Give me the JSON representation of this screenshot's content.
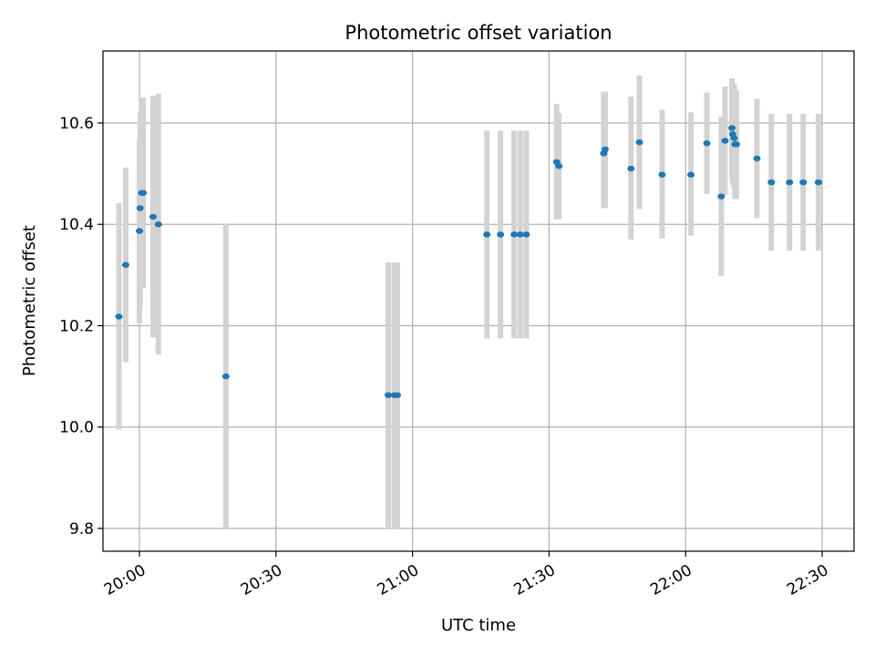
{
  "chart_data": {
    "type": "scatter",
    "title": "Photometric offset variation",
    "xlabel": "UTC time",
    "ylabel": "Photometric offset",
    "grid": true,
    "xaxis_type": "time",
    "xlim": [
      "19:52",
      "22:37"
    ],
    "ylim": [
      9.755,
      10.742
    ],
    "x_ticks": [
      {
        "value": "20:00",
        "label": "20:00"
      },
      {
        "value": "20:30",
        "label": "20:30"
      },
      {
        "value": "21:00",
        "label": "21:00"
      },
      {
        "value": "21:30",
        "label": "21:30"
      },
      {
        "value": "22:00",
        "label": "22:00"
      },
      {
        "value": "22:30",
        "label": "22:30"
      }
    ],
    "y_ticks": [
      {
        "value": 9.8,
        "label": "9.8"
      },
      {
        "value": 10.0,
        "label": "10.0"
      },
      {
        "value": 10.2,
        "label": "10.2"
      },
      {
        "value": 10.4,
        "label": "10.4"
      },
      {
        "value": 10.6,
        "label": "10.6"
      }
    ],
    "point_color": "#1f77b4",
    "errorbar_color": "#d3d3d3",
    "grid_color": "#b0b0b0",
    "points": [
      {
        "x": "19:55:30",
        "y": 10.218,
        "ylow": 9.995,
        "yhigh": 10.442
      },
      {
        "x": "19:57:00",
        "y": 10.32,
        "ylow": 10.128,
        "yhigh": 10.512
      },
      {
        "x": "20:00:00",
        "y": 10.387,
        "ylow": 10.205,
        "yhigh": 10.568
      },
      {
        "x": "20:00:10",
        "y": 10.432,
        "ylow": 10.24,
        "yhigh": 10.62
      },
      {
        "x": "20:00:30",
        "y": 10.462,
        "ylow": 10.274,
        "yhigh": 10.65
      },
      {
        "x": "20:00:50",
        "y": 10.462,
        "ylow": 10.274,
        "yhigh": 10.65
      },
      {
        "x": "20:03:00",
        "y": 10.415,
        "ylow": 10.177,
        "yhigh": 10.654
      },
      {
        "x": "20:04:10",
        "y": 10.4,
        "ylow": 10.143,
        "yhigh": 10.658
      },
      {
        "x": "20:19:00",
        "y": 10.1,
        "ylow": 9.8,
        "yhigh": 10.4
      },
      {
        "x": "20:54:40",
        "y": 10.063,
        "ylow": 9.8,
        "yhigh": 10.325
      },
      {
        "x": "20:56:00",
        "y": 10.063,
        "ylow": 9.8,
        "yhigh": 10.325
      },
      {
        "x": "20:56:40",
        "y": 10.063,
        "ylow": 9.8,
        "yhigh": 10.325
      },
      {
        "x": "21:16:20",
        "y": 10.38,
        "ylow": 10.175,
        "yhigh": 10.585
      },
      {
        "x": "21:19:20",
        "y": 10.38,
        "ylow": 10.175,
        "yhigh": 10.585
      },
      {
        "x": "21:22:20",
        "y": 10.38,
        "ylow": 10.175,
        "yhigh": 10.585
      },
      {
        "x": "21:23:40",
        "y": 10.38,
        "ylow": 10.175,
        "yhigh": 10.585
      },
      {
        "x": "21:25:00",
        "y": 10.38,
        "ylow": 10.175,
        "yhigh": 10.585
      },
      {
        "x": "21:31:40",
        "y": 10.523,
        "ylow": 10.41,
        "yhigh": 10.638
      },
      {
        "x": "21:32:10",
        "y": 10.515,
        "ylow": 10.41,
        "yhigh": 10.62
      },
      {
        "x": "21:42:00",
        "y": 10.54,
        "ylow": 10.432,
        "yhigh": 10.662
      },
      {
        "x": "21:42:20",
        "y": 10.548,
        "ylow": 10.432,
        "yhigh": 10.662
      },
      {
        "x": "21:48:00",
        "y": 10.51,
        "ylow": 10.37,
        "yhigh": 10.652
      },
      {
        "x": "21:49:50",
        "y": 10.562,
        "ylow": 10.43,
        "yhigh": 10.694
      },
      {
        "x": "21:54:50",
        "y": 10.498,
        "ylow": 10.372,
        "yhigh": 10.626
      },
      {
        "x": "22:01:10",
        "y": 10.498,
        "ylow": 10.378,
        "yhigh": 10.621
      },
      {
        "x": "22:04:40",
        "y": 10.56,
        "ylow": 10.46,
        "yhigh": 10.66
      },
      {
        "x": "22:07:50",
        "y": 10.455,
        "ylow": 10.298,
        "yhigh": 10.612
      },
      {
        "x": "22:08:40",
        "y": 10.565,
        "ylow": 10.458,
        "yhigh": 10.672
      },
      {
        "x": "22:10:10",
        "y": 10.59,
        "ylow": 10.49,
        "yhigh": 10.688
      },
      {
        "x": "22:10:20",
        "y": 10.578,
        "ylow": 10.478,
        "yhigh": 10.68
      },
      {
        "x": "22:10:40",
        "y": 10.57,
        "ylow": 10.47,
        "yhigh": 10.675
      },
      {
        "x": "22:10:50",
        "y": 10.558,
        "ylow": 10.45,
        "yhigh": 10.665
      },
      {
        "x": "22:11:10",
        "y": 10.558,
        "ylow": 10.45,
        "yhigh": 10.665
      },
      {
        "x": "22:15:40",
        "y": 10.53,
        "ylow": 10.412,
        "yhigh": 10.648
      },
      {
        "x": "22:18:50",
        "y": 10.483,
        "ylow": 10.348,
        "yhigh": 10.618
      },
      {
        "x": "22:22:50",
        "y": 10.483,
        "ylow": 10.348,
        "yhigh": 10.618
      },
      {
        "x": "22:25:50",
        "y": 10.483,
        "ylow": 10.348,
        "yhigh": 10.618
      },
      {
        "x": "22:29:10",
        "y": 10.483,
        "ylow": 10.348,
        "yhigh": 10.618
      }
    ]
  }
}
